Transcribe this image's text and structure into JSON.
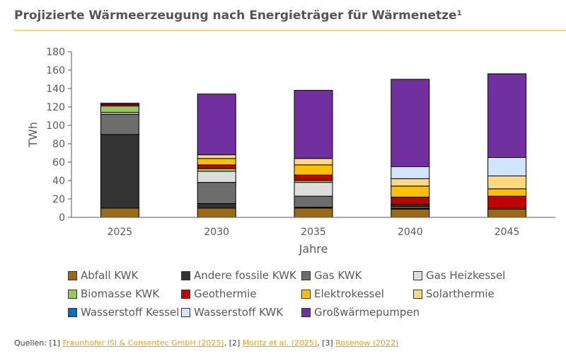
{
  "title": "Projizierte Wärmeerzeugung nach Energieträger für Wärmenetze¹",
  "chart_data": {
    "type": "bar",
    "stacked": true,
    "categories": [
      "2025",
      "2030",
      "2035",
      "2040",
      "2045"
    ],
    "xlabel": "Jahre",
    "ylabel": "TWh",
    "ylim": [
      0,
      180
    ],
    "yticks": [
      0,
      20,
      40,
      60,
      80,
      100,
      120,
      140,
      160,
      180
    ],
    "grid": false,
    "legend_position": "bottom",
    "series": [
      {
        "name": "Abfall KWK",
        "color": "#9c6a17",
        "values": [
          10,
          10,
          10,
          9,
          9
        ]
      },
      {
        "name": "Andere fossile KWK",
        "color": "#333333",
        "values": [
          80,
          5,
          1,
          1,
          0
        ]
      },
      {
        "name": "Gas KWK",
        "color": "#6d6d6d",
        "values": [
          22,
          23,
          12,
          2,
          0
        ]
      },
      {
        "name": "Gas Heizkessel",
        "color": "#dddddd",
        "values": [
          2,
          12,
          15,
          1,
          1
        ]
      },
      {
        "name": "Biomasse KWK",
        "color": "#8fcd5e",
        "values": [
          7,
          3,
          2,
          1,
          0
        ]
      },
      {
        "name": "Geothermie",
        "color": "#c00000",
        "values": [
          2,
          4,
          6,
          8,
          13
        ]
      },
      {
        "name": "Elektrokessel",
        "color": "#ffc000",
        "values": [
          0,
          7,
          11,
          12,
          8
        ]
      },
      {
        "name": "Solarthermie",
        "color": "#ffd97f",
        "values": [
          0,
          4,
          7,
          8,
          14
        ]
      },
      {
        "name": "Wasserstoff Kessel",
        "color": "#0070c0",
        "values": [
          0,
          0,
          0,
          0,
          0
        ]
      },
      {
        "name": "Wasserstoff KWK",
        "color": "#cfe5fb",
        "values": [
          0,
          0,
          0,
          13,
          20
        ]
      },
      {
        "name": "Großwärmepumpen",
        "color": "#7030a0",
        "values": [
          1,
          66,
          74,
          95,
          91
        ]
      }
    ]
  },
  "sources": {
    "prefix": "Quellen: [1] ",
    "link1": "Fraunhofer ISI & Consentec GmbH (2025)",
    "sep2": ", [2] ",
    "link2": "Moritz et al. (2025)",
    "sep3": ", [3] ",
    "link3": "Rosenow (2022)"
  }
}
